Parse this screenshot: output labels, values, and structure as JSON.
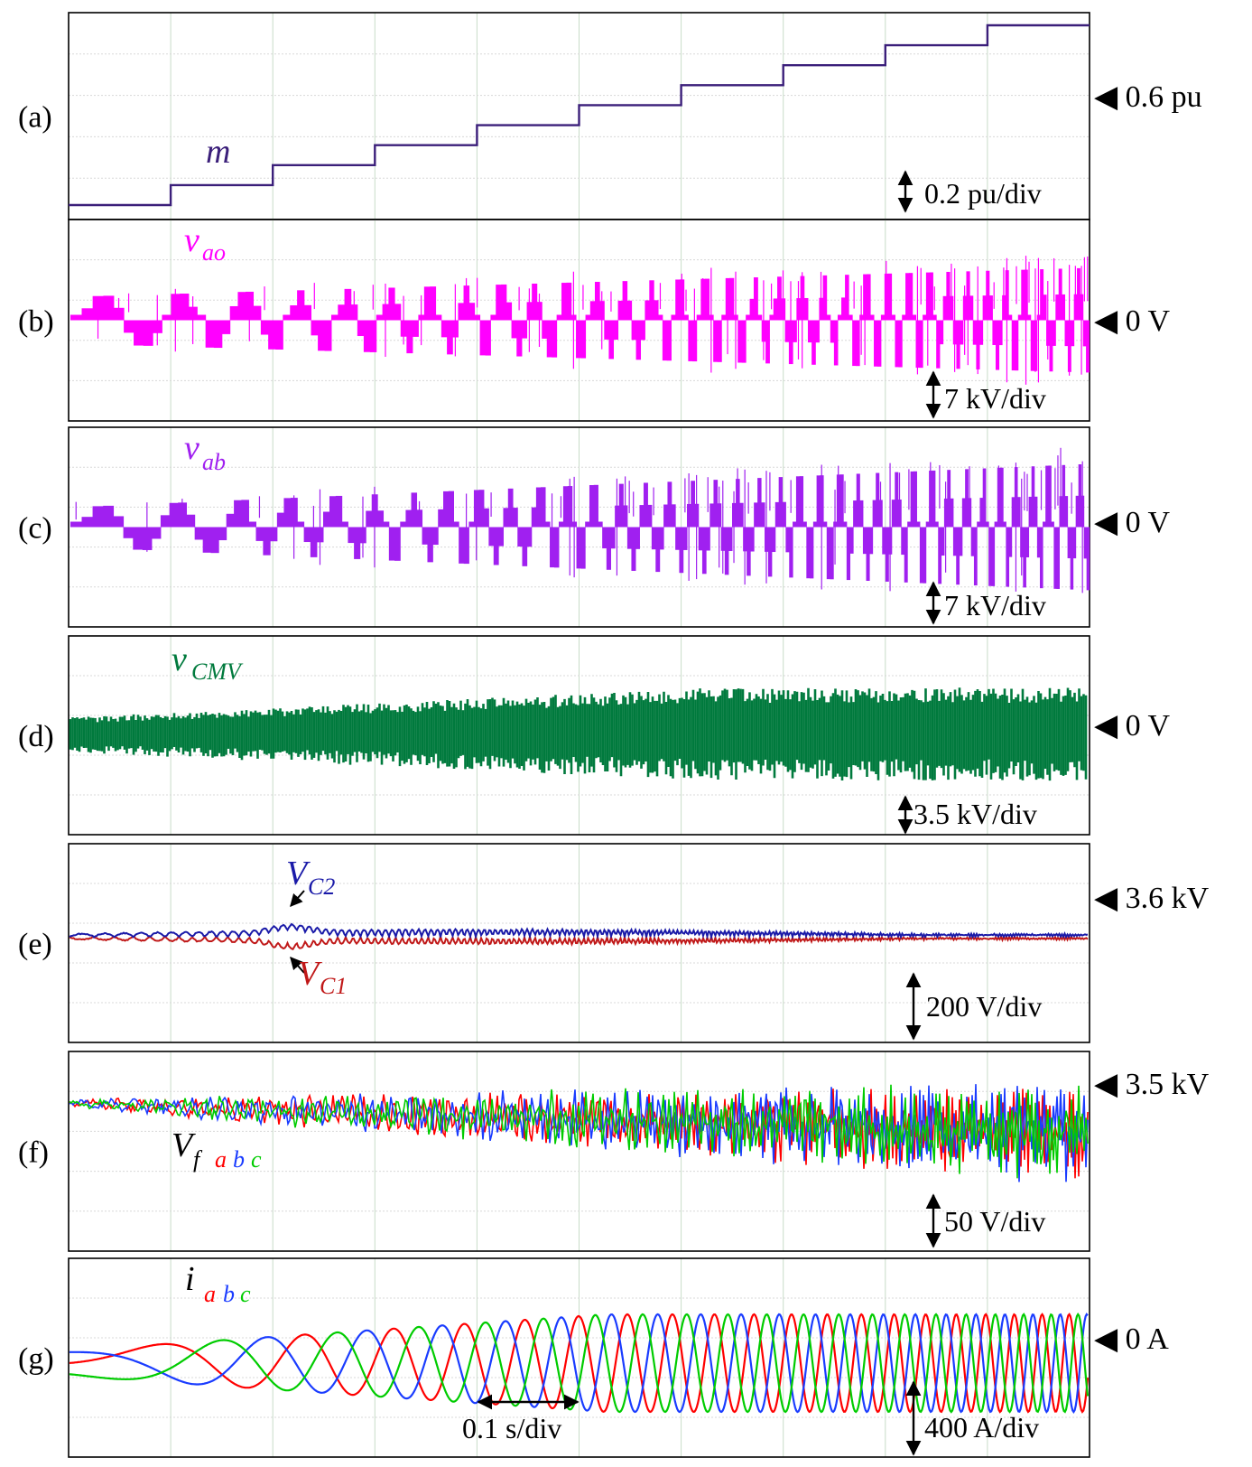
{
  "chart_data": [
    {
      "type": "line",
      "panel_label": "(a)",
      "series": [
        {
          "name": "m",
          "color": "#3b1f7a"
        }
      ],
      "step_levels_pu": [
        0.1,
        0.2,
        0.3,
        0.4,
        0.5,
        0.6,
        0.7,
        0.8,
        0.9,
        1.0
      ],
      "reference_marker": "◀ 0.6 pu",
      "scale_text": "0.2 pu/div"
    },
    {
      "type": "line",
      "panel_label": "(b)",
      "series": [
        {
          "name": "v",
          "subscript": "ao",
          "color": "#ff00ff"
        }
      ],
      "reference_marker": "◀ 0 V",
      "scale_text": "7 kV/div"
    },
    {
      "type": "line",
      "panel_label": "(c)",
      "series": [
        {
          "name": "v",
          "subscript": "ab",
          "color": "#a020f0"
        }
      ],
      "reference_marker": "◀ 0 V",
      "scale_text": "7 kV/div"
    },
    {
      "type": "line",
      "panel_label": "(d)",
      "series": [
        {
          "name": "v",
          "subscript": "CMV",
          "color": "#007a3d"
        }
      ],
      "reference_marker": "◀ 0 V",
      "scale_text": "3.5 kV/div"
    },
    {
      "type": "line",
      "panel_label": "(e)",
      "series": [
        {
          "name": "V",
          "subscript": "C2",
          "color": "#1a1aa8"
        },
        {
          "name": "V",
          "subscript": "C1",
          "color": "#c01818"
        }
      ],
      "reference_marker": "◀ 3.6 kV",
      "scale_text": "200 V/div"
    },
    {
      "type": "line",
      "panel_label": "(f)",
      "series": [
        {
          "name": "V",
          "subscript": "f",
          "color": "#000000"
        },
        {
          "name": "a",
          "color": "#ff0000"
        },
        {
          "name": "b",
          "color": "#1a3cff"
        },
        {
          "name": "c",
          "color": "#00cc00"
        }
      ],
      "reference_marker": "◀ 3.5 kV",
      "scale_text": "50 V/div"
    },
    {
      "type": "line",
      "panel_label": "(g)",
      "series": [
        {
          "name": "i",
          "color": "#000000"
        },
        {
          "name": "a",
          "color": "#ff0000"
        },
        {
          "name": "b",
          "color": "#1a3cff"
        },
        {
          "name": "c",
          "color": "#00cc00"
        }
      ],
      "reference_marker": "◀ 0 A",
      "scale_text": "400 A/div",
      "time_scale_text": "0.1 s/div"
    }
  ]
}
